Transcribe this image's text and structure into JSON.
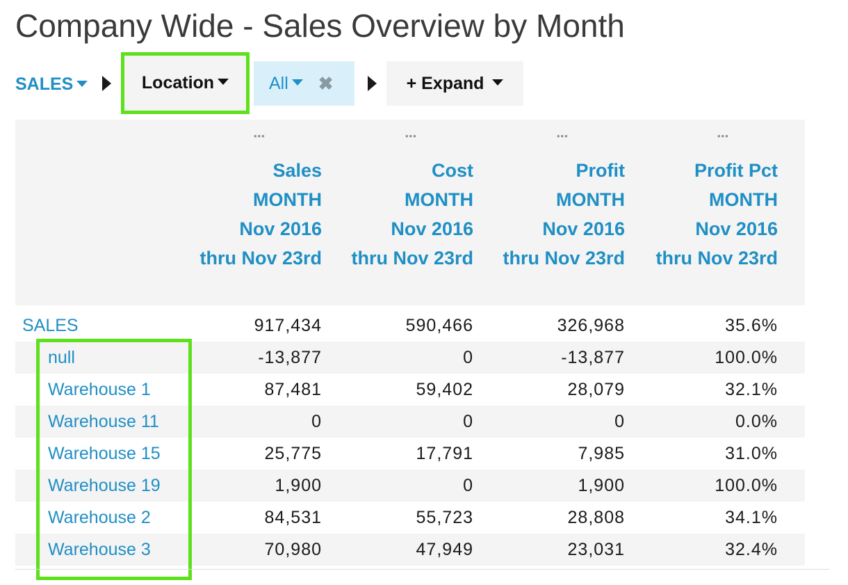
{
  "page": {
    "title": "Company Wide - Sales Overview by Month"
  },
  "toolbar": {
    "root_label": "SALES",
    "location_label": "Location",
    "filter_value": "All",
    "filter_clear": "✖",
    "expand_label": "+ Expand"
  },
  "columns": [
    {
      "menu": "•••",
      "line1": "Sales",
      "line2": "MONTH",
      "line3": "Nov 2016",
      "line4": "thru Nov 23rd"
    },
    {
      "menu": "•••",
      "line1": "Cost",
      "line2": "MONTH",
      "line3": "Nov 2016",
      "line4": "thru Nov 23rd"
    },
    {
      "menu": "•••",
      "line1": "Profit",
      "line2": "MONTH",
      "line3": "Nov 2016",
      "line4": "thru Nov 23rd"
    },
    {
      "menu": "•••",
      "line1": "Profit Pct",
      "line2": "MONTH",
      "line3": "Nov 2016",
      "line4": "thru Nov 23rd"
    }
  ],
  "rows": [
    {
      "label": "SALES",
      "sales": "917,434",
      "cost": "590,466",
      "profit": "326,968",
      "pct": "35.6%"
    },
    {
      "label": "null",
      "sales": "-13,877",
      "cost": "0",
      "profit": "-13,877",
      "pct": "100.0%"
    },
    {
      "label": "Warehouse 1",
      "sales": "87,481",
      "cost": "59,402",
      "profit": "28,079",
      "pct": "32.1%"
    },
    {
      "label": "Warehouse 11",
      "sales": "0",
      "cost": "0",
      "profit": "0",
      "pct": "0.0%"
    },
    {
      "label": "Warehouse 15",
      "sales": "25,775",
      "cost": "17,791",
      "profit": "7,985",
      "pct": "31.0%"
    },
    {
      "label": "Warehouse 19",
      "sales": "1,900",
      "cost": "0",
      "profit": "1,900",
      "pct": "100.0%"
    },
    {
      "label": "Warehouse 2",
      "sales": "84,531",
      "cost": "55,723",
      "profit": "28,808",
      "pct": "34.1%"
    },
    {
      "label": "Warehouse 3",
      "sales": "70,980",
      "cost": "47,949",
      "profit": "23,031",
      "pct": "32.4%"
    }
  ],
  "colors": {
    "accent": "#1f8fc4",
    "highlight": "#5ee01d",
    "band": "#f4f4f4",
    "chip": "#d9f0fb"
  }
}
